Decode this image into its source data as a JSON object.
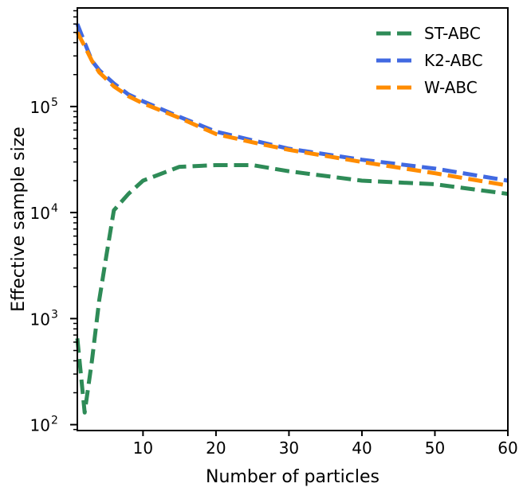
{
  "chart_data": {
    "type": "line",
    "xlabel": "Number of particles",
    "ylabel": "Effective sample size",
    "xlim": [
      1,
      60
    ],
    "ylim": [
      88,
      850000
    ],
    "yscale": "log",
    "xticks": [
      10,
      20,
      30,
      40,
      50,
      60
    ],
    "yticks": [
      {
        "value": 100,
        "base": "10",
        "exp": "2"
      },
      {
        "value": 1000,
        "base": "10",
        "exp": "3"
      },
      {
        "value": 10000,
        "base": "10",
        "exp": "4"
      },
      {
        "value": 100000,
        "base": "10",
        "exp": "5"
      }
    ],
    "grid": false,
    "legend_position": "top-right",
    "series": [
      {
        "name": "ST-ABC",
        "color": "#2e8b57",
        "x": [
          1,
          2,
          3,
          4,
          5,
          6,
          8,
          10,
          15,
          20,
          25,
          30,
          40,
          50,
          60
        ],
        "y": [
          650,
          130,
          400,
          1500,
          4000,
          10500,
          15000,
          20000,
          27000,
          28000,
          28000,
          24500,
          20000,
          18500,
          15000
        ]
      },
      {
        "name": "K2-ABC",
        "color": "#4169e1",
        "x": [
          1,
          2,
          3,
          4,
          6,
          8,
          10,
          15,
          20,
          25,
          30,
          40,
          50,
          60
        ],
        "y": [
          600000,
          400000,
          270000,
          220000,
          165000,
          130000,
          112000,
          80000,
          58000,
          48000,
          40000,
          31500,
          26000,
          20000
        ]
      },
      {
        "name": "W-ABC",
        "color": "#ff8c00",
        "x": [
          1,
          2,
          3,
          4,
          6,
          8,
          10,
          15,
          20,
          25,
          30,
          40,
          50,
          60
        ],
        "y": [
          500000,
          370000,
          270000,
          210000,
          155000,
          125000,
          107000,
          78000,
          55000,
          46000,
          39000,
          30000,
          23500,
          18000
        ]
      }
    ]
  }
}
